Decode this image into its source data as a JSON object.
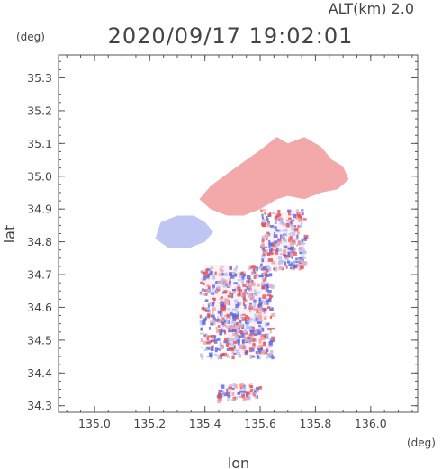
{
  "chart_data": {
    "type": "heatmap",
    "title": "2020/09/17 19:02:01",
    "subtitle": "ALT(km) 2.0",
    "xlabel": "lon",
    "ylabel": "lat",
    "x_unit": "(deg)",
    "y_unit": "(deg)",
    "xlim": [
      134.87,
      136.17
    ],
    "ylim": [
      34.28,
      35.37
    ],
    "x_ticks": [
      "135.0",
      "135.2",
      "135.4",
      "135.6",
      "135.8",
      "136.0"
    ],
    "y_ticks": [
      "34.3",
      "34.4",
      "34.5",
      "34.6",
      "34.7",
      "34.8",
      "34.9",
      "35.0",
      "35.1",
      "35.2",
      "35.3"
    ],
    "colors": {
      "positive": "#f2a0a0",
      "positive_strong": "#e85050",
      "negative": "#b8c0f2",
      "negative_strong": "#5a64e0",
      "axis": "#555555"
    },
    "regions": [
      {
        "name": "north-positive-band",
        "sign": "positive",
        "points": [
          [
            135.42,
            34.97
          ],
          [
            135.5,
            35.02
          ],
          [
            135.6,
            35.08
          ],
          [
            135.66,
            35.12
          ],
          [
            135.7,
            35.1
          ],
          [
            135.76,
            35.12
          ],
          [
            135.82,
            35.09
          ],
          [
            135.86,
            35.05
          ],
          [
            135.9,
            35.03
          ],
          [
            135.92,
            34.99
          ],
          [
            135.88,
            34.96
          ],
          [
            135.82,
            34.95
          ],
          [
            135.76,
            34.93
          ],
          [
            135.7,
            34.94
          ],
          [
            135.66,
            34.93
          ],
          [
            135.6,
            34.9
          ],
          [
            135.54,
            34.88
          ],
          [
            135.48,
            34.88
          ],
          [
            135.42,
            34.9
          ],
          [
            135.38,
            34.93
          ]
        ]
      },
      {
        "name": "west-negative-patch",
        "sign": "negative",
        "points": [
          [
            135.24,
            34.86
          ],
          [
            135.3,
            34.88
          ],
          [
            135.36,
            34.88
          ],
          [
            135.4,
            34.86
          ],
          [
            135.43,
            34.83
          ],
          [
            135.4,
            34.8
          ],
          [
            135.34,
            34.78
          ],
          [
            135.27,
            34.78
          ],
          [
            135.22,
            34.81
          ]
        ]
      },
      {
        "name": "east-mixed-strip",
        "sign": "mixed",
        "points": [
          [
            135.6,
            34.74
          ],
          [
            135.64,
            34.85
          ],
          [
            135.68,
            34.89
          ],
          [
            135.72,
            34.9
          ],
          [
            135.76,
            34.88
          ],
          [
            135.74,
            34.82
          ],
          [
            135.7,
            34.76
          ],
          [
            135.66,
            34.72
          ]
        ]
      },
      {
        "name": "central-mixed-cluster",
        "sign": "mixed",
        "points": [
          [
            135.4,
            34.73
          ],
          [
            135.48,
            34.73
          ],
          [
            135.54,
            34.7
          ],
          [
            135.6,
            34.66
          ],
          [
            135.64,
            34.62
          ],
          [
            135.62,
            34.54
          ],
          [
            135.6,
            34.48
          ],
          [
            135.54,
            34.45
          ],
          [
            135.48,
            34.48
          ],
          [
            135.46,
            34.55
          ],
          [
            135.42,
            34.62
          ],
          [
            135.38,
            34.68
          ]
        ]
      },
      {
        "name": "south-scatter",
        "sign": "mixed",
        "points": [
          [
            135.44,
            34.37
          ],
          [
            135.5,
            34.36
          ],
          [
            135.56,
            34.36
          ],
          [
            135.6,
            34.35
          ],
          [
            135.56,
            34.32
          ],
          [
            135.48,
            34.33
          ]
        ]
      }
    ]
  }
}
